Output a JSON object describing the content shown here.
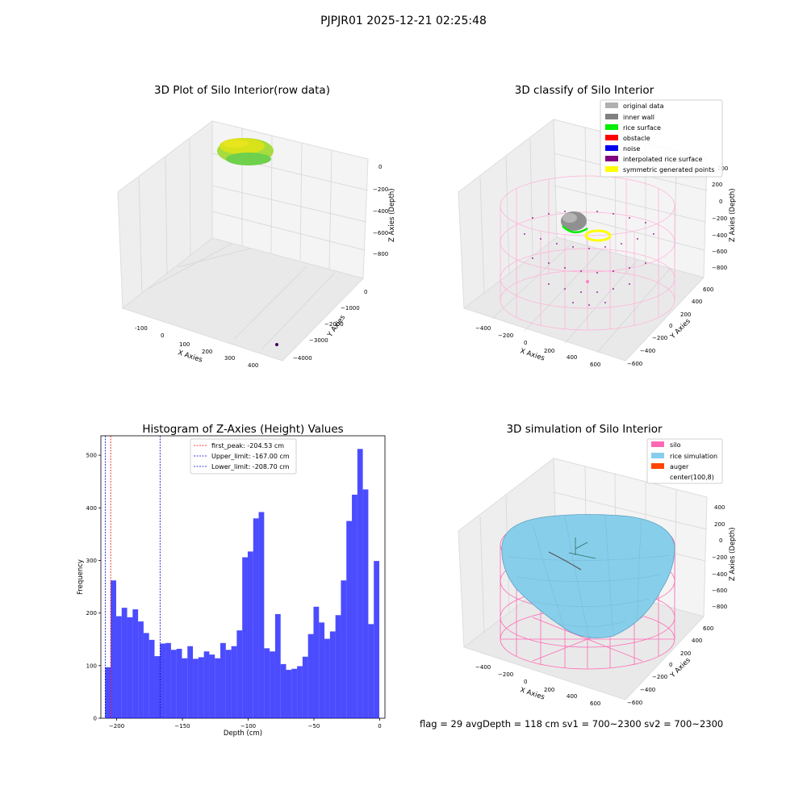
{
  "figure": {
    "suptitle": "PJPJR01 2025-12-21 02:25:48",
    "footer": "flag = 29  avgDepth = 118 cm  sv1 = 700~2300  sv2 = 700~2300"
  },
  "plot3d_raw": {
    "title": "3D Plot of Silo Interior(row data)",
    "xlabel": "X Axies",
    "ylabel": "Y Axies",
    "zlabel": "Z Axies (Depth)",
    "xticks": [
      "-100",
      "0",
      "100",
      "200",
      "300",
      "400"
    ],
    "yticks": [
      "0",
      "−1000",
      "−2000",
      "−3000",
      "−4000"
    ],
    "zticks": [
      "0",
      "−200",
      "−400",
      "−600",
      "−800"
    ]
  },
  "plot3d_classify": {
    "title": "3D classify of Silo Interior",
    "xlabel": "X Axies",
    "ylabel": "Y Axies",
    "zlabel": "Z Axies (Depth)",
    "xticks": [
      "−400",
      "−200",
      "0",
      "200",
      "400",
      "600"
    ],
    "yticks": [
      "600",
      "400",
      "200",
      "0",
      "−200",
      "−400",
      "−600"
    ],
    "zticks": [
      "200",
      "0",
      "−200",
      "−400",
      "−600",
      "−800"
    ],
    "legend": [
      {
        "label": "original data",
        "color": "#b0b0b0"
      },
      {
        "label": "inner wall",
        "color": "#808080"
      },
      {
        "label": "rice surface",
        "color": "#00ee00"
      },
      {
        "label": "obstacle",
        "color": "#ff0000"
      },
      {
        "label": "noise",
        "color": "#0000ee"
      },
      {
        "label": "interpolated rice surface",
        "color": "#800080"
      },
      {
        "label": "symmetric generated points",
        "color": "#ffff00"
      }
    ]
  },
  "plot3d_sim": {
    "title": "3D simulation of Silo Interior",
    "xlabel": "X Axies",
    "ylabel": "Y Axies",
    "zlabel": "Z Axies (Depth)",
    "xticks": [
      "−400",
      "−200",
      "0",
      "200",
      "400",
      "600"
    ],
    "yticks": [
      "600",
      "400",
      "200",
      "0",
      "−200",
      "−400",
      "−600"
    ],
    "zticks": [
      "400",
      "200",
      "0",
      "−200",
      "−400",
      "−600",
      "−800"
    ],
    "legend": [
      {
        "label": "silo",
        "color": "#ff69b4"
      },
      {
        "label": "rice simulation",
        "color": "#87ceeb"
      },
      {
        "label": "auger",
        "color": "#ff4500"
      },
      {
        "label": "center(100,8)",
        "color": ""
      }
    ]
  },
  "chart_data": {
    "type": "bar",
    "title": "Histogram of Z-Axies (Height) Values",
    "xlabel": "Depth (cm)",
    "ylabel": "Frequency",
    "xlim": [
      -212,
      4
    ],
    "ylim": [
      0,
      537
    ],
    "xticks": [
      -200,
      -150,
      -100,
      -50,
      0
    ],
    "yticks": [
      0,
      100,
      200,
      300,
      400,
      500
    ],
    "bar_color": "#0000ff",
    "bin_start": -208.7,
    "bin_end": -0.3,
    "values": [
      97,
      262,
      194,
      210,
      192,
      207,
      184,
      162,
      149,
      118,
      142,
      143,
      130,
      132,
      114,
      137,
      113,
      116,
      127,
      121,
      114,
      143,
      130,
      137,
      167,
      306,
      317,
      380,
      392,
      133,
      127,
      198,
      103,
      92,
      94,
      99,
      117,
      160,
      212,
      182,
      151,
      165,
      196,
      262,
      375,
      425,
      512,
      435,
      179,
      299
    ],
    "vlines": [
      {
        "label": "first_peak: -204.53 cm",
        "x": -204.53,
        "color": "#ff0000"
      },
      {
        "label": "Upper_limit: -167.00 cm",
        "x": -167.0,
        "color": "#0000cc"
      },
      {
        "label": "Lower_limit: -208.70 cm",
        "x": -208.7,
        "color": "#0000cc"
      }
    ]
  }
}
